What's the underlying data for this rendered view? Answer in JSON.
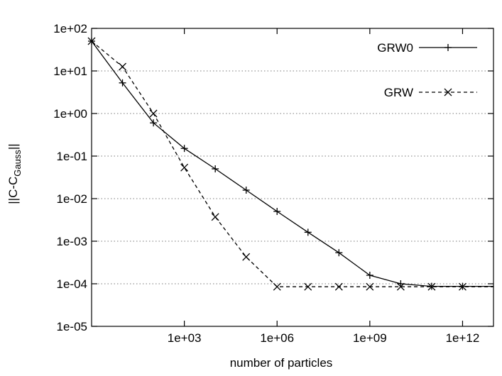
{
  "chart_data": {
    "type": "line",
    "title": "",
    "xlabel": "number of particles",
    "ylabel_main": "||C-C",
    "ylabel_sub": "Gauss",
    "ylabel_end": "||",
    "x_scale": "log10",
    "y_scale": "log10",
    "xlim_exp": [
      0,
      13
    ],
    "ylim_exp": [
      -5,
      2
    ],
    "x_ticks": [
      {
        "exp": 3,
        "label": "1e+03"
      },
      {
        "exp": 6,
        "label": "1e+06"
      },
      {
        "exp": 9,
        "label": "1e+09"
      },
      {
        "exp": 12,
        "label": "1e+12"
      }
    ],
    "y_ticks": [
      {
        "exp": 2,
        "label": "1e+02"
      },
      {
        "exp": 1,
        "label": "1e+01"
      },
      {
        "exp": 0,
        "label": "1e+00"
      },
      {
        "exp": -1,
        "label": "1e-01"
      },
      {
        "exp": -2,
        "label": "1e-02"
      },
      {
        "exp": -3,
        "label": "1e-03"
      },
      {
        "exp": -4,
        "label": "1e-04"
      },
      {
        "exp": -5,
        "label": "1e-05"
      }
    ],
    "grid": "horizontal dotted",
    "legend_position": "top-right",
    "series": [
      {
        "name": "GRW0",
        "line_style": "solid",
        "marker": "plus",
        "color": "#000000",
        "points": [
          {
            "x_exp": 0.0,
            "y_exp": 1.7
          },
          {
            "x_exp": 1.0,
            "y_exp": 0.72
          },
          {
            "x_exp": 2.0,
            "y_exp": -0.22
          },
          {
            "x_exp": 3.0,
            "y_exp": -0.82
          },
          {
            "x_exp": 4.0,
            "y_exp": -1.3
          },
          {
            "x_exp": 5.0,
            "y_exp": -1.8
          },
          {
            "x_exp": 6.0,
            "y_exp": -2.3
          },
          {
            "x_exp": 7.0,
            "y_exp": -2.79
          },
          {
            "x_exp": 8.0,
            "y_exp": -3.27
          },
          {
            "x_exp": 9.0,
            "y_exp": -3.8
          },
          {
            "x_exp": 10.0,
            "y_exp": -4.0
          },
          {
            "x_exp": 11.0,
            "y_exp": -4.06
          },
          {
            "x_exp": 12.0,
            "y_exp": -4.06
          },
          {
            "x_exp": 13.0,
            "y_exp": -4.06
          }
        ]
      },
      {
        "name": "GRW",
        "line_style": "dashed",
        "marker": "cross",
        "color": "#000000",
        "points": [
          {
            "x_exp": 0.0,
            "y_exp": 1.7
          },
          {
            "x_exp": 1.0,
            "y_exp": 1.1
          },
          {
            "x_exp": 2.0,
            "y_exp": 0.0
          },
          {
            "x_exp": 3.0,
            "y_exp": -1.27
          },
          {
            "x_exp": 4.0,
            "y_exp": -2.43
          },
          {
            "x_exp": 5.0,
            "y_exp": -3.37
          },
          {
            "x_exp": 6.0,
            "y_exp": -4.07
          },
          {
            "x_exp": 7.0,
            "y_exp": -4.07
          },
          {
            "x_exp": 8.0,
            "y_exp": -4.07
          },
          {
            "x_exp": 9.0,
            "y_exp": -4.07
          },
          {
            "x_exp": 10.0,
            "y_exp": -4.07
          },
          {
            "x_exp": 11.0,
            "y_exp": -4.07
          },
          {
            "x_exp": 12.0,
            "y_exp": -4.07
          },
          {
            "x_exp": 13.0,
            "y_exp": -4.07
          }
        ]
      }
    ]
  }
}
